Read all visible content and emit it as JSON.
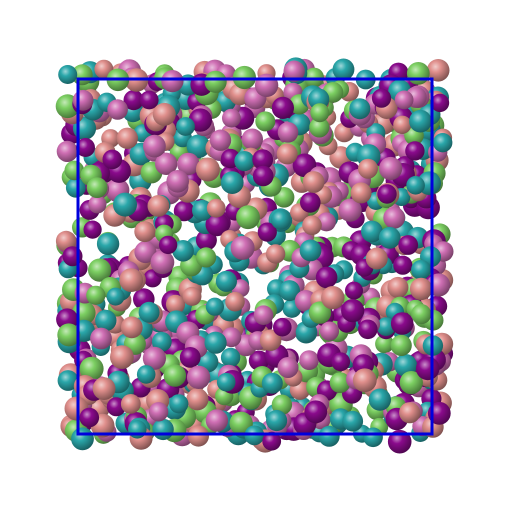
{
  "scene": {
    "type": "molecular-dynamics-snapshot",
    "background": "#ffffff",
    "box_color": "#0000dd",
    "particle_shape": "sphere",
    "particle_colors": {
      "purple": "#8a0a8c",
      "cyan": "#2aa7aa",
      "green": "#7ccf62",
      "salmon": "#e08f8c",
      "pink": "#cf6fb4"
    }
  }
}
